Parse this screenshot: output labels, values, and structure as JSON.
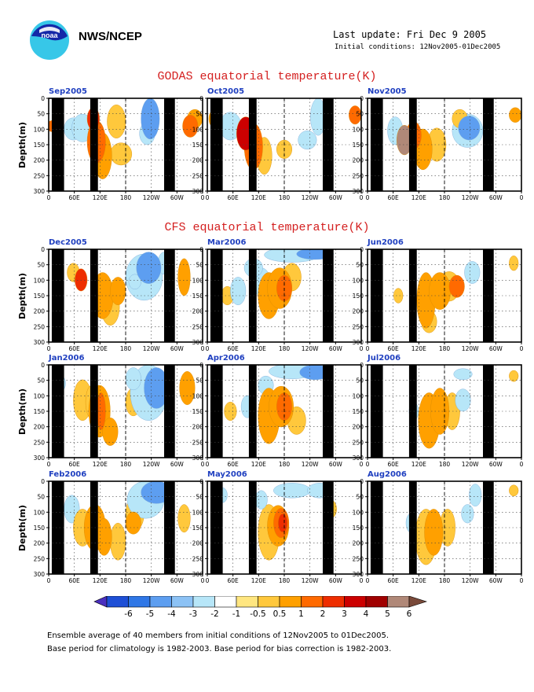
{
  "header": {
    "agency": "NWS/NCEP",
    "last_update": "Last update: Fri Dec  9 2005",
    "initial_conditions": "Initial conditions: 12Nov2005-01Dec2005",
    "logo_text": "noaa"
  },
  "godas_title": "GODAS equatorial temperature(K)",
  "cfs_title": "CFS equatorial temperature(K)",
  "footnotes": [
    "Ensemble average of 40 members from initial conditions of 12Nov2005 to 01Dec2005.",
    "Base period for climatology is 1982-2003. Base period for bias correction is 1982-2003."
  ],
  "colors": {
    "title_red": "#d42020",
    "panel_label_blue": "#2040c0",
    "scale": [
      "#4a2fbf",
      "#1e4fd6",
      "#2f77e6",
      "#5d9ef0",
      "#8cc2f5",
      "#b7e6f8",
      "#ffffff",
      "#ffe680",
      "#ffc83c",
      "#ffa000",
      "#ff6a00",
      "#ee2d00",
      "#cc0000",
      "#a00000",
      "#b08878",
      "#7a4a3a"
    ]
  },
  "chart_data": {
    "type": "heatmap",
    "ylabel": "Depth(m)",
    "y_ticks": [
      "0",
      "50",
      "100",
      "150",
      "200",
      "250",
      "300"
    ],
    "x_ticks": [
      "0",
      "60E",
      "120E",
      "180",
      "120W",
      "60W",
      "0"
    ],
    "ylim": [
      300,
      0
    ],
    "colorbar_levels": [
      "-6",
      "-5",
      "-4",
      "-3",
      "-2",
      "-1",
      "-0.5",
      "0.5",
      "1",
      "2",
      "3",
      "4",
      "5",
      "6"
    ],
    "panels": [
      {
        "id": "sep2005",
        "group": "godas",
        "label": "Sep2005",
        "blobs": [
          [
            0.16,
            0.33,
            0.06,
            0.12,
            -1
          ],
          [
            0.22,
            0.32,
            0.07,
            0.15,
            -1
          ],
          [
            0.29,
            0.22,
            0.04,
            0.12,
            4
          ],
          [
            0.31,
            0.47,
            0.06,
            0.23,
            3
          ],
          [
            0.35,
            0.62,
            0.06,
            0.25,
            2
          ],
          [
            0.44,
            0.25,
            0.06,
            0.18,
            1
          ],
          [
            0.47,
            0.6,
            0.07,
            0.12,
            1
          ],
          [
            0.64,
            0.38,
            0.05,
            0.12,
            -1
          ],
          [
            0.66,
            0.22,
            0.06,
            0.22,
            -2
          ],
          [
            0.92,
            0.3,
            0.05,
            0.12,
            3
          ],
          [
            0.95,
            0.22,
            0.05,
            0.1,
            2
          ],
          [
            0.02,
            0.3,
            0.03,
            0.06,
            3
          ]
        ]
      },
      {
        "id": "oct2005",
        "group": "godas",
        "label": "Oct2005",
        "blobs": [
          [
            0.05,
            0.22,
            0.04,
            0.1,
            2
          ],
          [
            0.15,
            0.3,
            0.07,
            0.15,
            -1
          ],
          [
            0.25,
            0.38,
            0.06,
            0.18,
            5
          ],
          [
            0.3,
            0.52,
            0.06,
            0.25,
            3
          ],
          [
            0.37,
            0.62,
            0.05,
            0.2,
            1
          ],
          [
            0.5,
            0.55,
            0.05,
            0.1,
            1
          ],
          [
            0.65,
            0.45,
            0.06,
            0.1,
            -1
          ],
          [
            0.72,
            0.2,
            0.05,
            0.2,
            -1
          ],
          [
            0.96,
            0.18,
            0.04,
            0.1,
            3
          ]
        ]
      },
      {
        "id": "nov2005",
        "group": "godas",
        "label": "Nov2005",
        "blobs": [
          [
            0.18,
            0.35,
            0.05,
            0.15,
            -1
          ],
          [
            0.24,
            0.45,
            0.05,
            0.16,
            6
          ],
          [
            0.3,
            0.4,
            0.05,
            0.15,
            3
          ],
          [
            0.36,
            0.55,
            0.06,
            0.22,
            2
          ],
          [
            0.45,
            0.5,
            0.06,
            0.18,
            1
          ],
          [
            0.65,
            0.35,
            0.1,
            0.18,
            -1
          ],
          [
            0.66,
            0.32,
            0.07,
            0.13,
            -2
          ],
          [
            0.6,
            0.22,
            0.05,
            0.1,
            1
          ],
          [
            0.96,
            0.18,
            0.04,
            0.08,
            2
          ]
        ]
      },
      {
        "id": "dec2005",
        "group": "cfs",
        "label": "Dec2005",
        "blobs": [
          [
            0.21,
            0.33,
            0.04,
            0.12,
            4
          ],
          [
            0.16,
            0.25,
            0.04,
            0.1,
            1
          ],
          [
            0.35,
            0.5,
            0.07,
            0.25,
            2
          ],
          [
            0.45,
            0.45,
            0.05,
            0.15,
            2
          ],
          [
            0.4,
            0.62,
            0.06,
            0.2,
            1
          ],
          [
            0.62,
            0.3,
            0.12,
            0.25,
            -1
          ],
          [
            0.65,
            0.2,
            0.08,
            0.17,
            -2
          ],
          [
            0.56,
            0.35,
            0.04,
            0.08,
            -1
          ],
          [
            0.88,
            0.3,
            0.04,
            0.2,
            2
          ],
          [
            0.75,
            0.15,
            0.04,
            0.12,
            -1
          ]
        ]
      },
      {
        "id": "mar2006",
        "group": "cfs",
        "label": "Mar2006",
        "blobs": [
          [
            0.13,
            0.5,
            0.04,
            0.1,
            1
          ],
          [
            0.2,
            0.45,
            0.05,
            0.15,
            -1
          ],
          [
            0.35,
            0.35,
            0.06,
            0.15,
            -1
          ],
          [
            0.4,
            0.5,
            0.07,
            0.25,
            2
          ],
          [
            0.47,
            0.42,
            0.08,
            0.22,
            2
          ],
          [
            0.5,
            0.42,
            0.05,
            0.14,
            3
          ],
          [
            0.55,
            0.3,
            0.06,
            0.15,
            1
          ],
          [
            0.55,
            0.06,
            0.18,
            0.08,
            -1
          ],
          [
            0.7,
            0.05,
            0.12,
            0.06,
            -2
          ],
          [
            0.3,
            0.2,
            0.06,
            0.1,
            -1
          ]
        ]
      },
      {
        "id": "jun2006",
        "group": "cfs",
        "label": "Jun2006",
        "blobs": [
          [
            0.38,
            0.55,
            0.06,
            0.3,
            2
          ],
          [
            0.47,
            0.45,
            0.07,
            0.2,
            2
          ],
          [
            0.53,
            0.4,
            0.07,
            0.16,
            1
          ],
          [
            0.58,
            0.4,
            0.05,
            0.12,
            3
          ],
          [
            0.4,
            0.78,
            0.05,
            0.12,
            1
          ],
          [
            0.68,
            0.25,
            0.05,
            0.12,
            -1
          ],
          [
            0.95,
            0.15,
            0.03,
            0.08,
            1
          ],
          [
            0.2,
            0.5,
            0.03,
            0.08,
            1
          ]
        ]
      },
      {
        "id": "jan2006",
        "group": "cfs",
        "label": "Jan2006",
        "blobs": [
          [
            0.08,
            0.2,
            0.03,
            0.08,
            -1
          ],
          [
            0.22,
            0.38,
            0.06,
            0.22,
            1
          ],
          [
            0.28,
            0.4,
            0.04,
            0.18,
            1
          ],
          [
            0.33,
            0.5,
            0.07,
            0.28,
            2
          ],
          [
            0.34,
            0.5,
            0.03,
            0.2,
            3
          ],
          [
            0.4,
            0.72,
            0.05,
            0.15,
            2
          ],
          [
            0.55,
            0.4,
            0.05,
            0.15,
            1
          ],
          [
            0.65,
            0.3,
            0.12,
            0.3,
            -1
          ],
          [
            0.7,
            0.25,
            0.08,
            0.22,
            -2
          ],
          [
            0.55,
            0.15,
            0.05,
            0.12,
            -1
          ],
          [
            0.9,
            0.25,
            0.05,
            0.18,
            2
          ]
        ]
      },
      {
        "id": "apr2006",
        "group": "cfs",
        "label": "Apr2006",
        "blobs": [
          [
            0.15,
            0.5,
            0.04,
            0.1,
            1
          ],
          [
            0.4,
            0.55,
            0.07,
            0.3,
            2
          ],
          [
            0.48,
            0.45,
            0.08,
            0.22,
            2
          ],
          [
            0.5,
            0.45,
            0.05,
            0.15,
            3
          ],
          [
            0.38,
            0.22,
            0.05,
            0.1,
            -1
          ],
          [
            0.55,
            0.07,
            0.15,
            0.08,
            -1
          ],
          [
            0.7,
            0.08,
            0.1,
            0.08,
            -2
          ],
          [
            0.58,
            0.6,
            0.06,
            0.15,
            1
          ],
          [
            0.26,
            0.45,
            0.04,
            0.12,
            -1
          ]
        ]
      },
      {
        "id": "jul2006",
        "group": "cfs",
        "label": "Jul2006",
        "blobs": [
          [
            0.4,
            0.6,
            0.07,
            0.3,
            2
          ],
          [
            0.47,
            0.5,
            0.06,
            0.25,
            2
          ],
          [
            0.55,
            0.5,
            0.05,
            0.2,
            1
          ],
          [
            0.62,
            0.38,
            0.05,
            0.12,
            -1
          ],
          [
            0.3,
            0.5,
            0.03,
            0.1,
            -1
          ],
          [
            0.95,
            0.12,
            0.03,
            0.06,
            1
          ],
          [
            0.62,
            0.1,
            0.06,
            0.06,
            -1
          ]
        ]
      },
      {
        "id": "feb2006",
        "group": "cfs",
        "label": "Feb2006",
        "blobs": [
          [
            0.15,
            0.3,
            0.05,
            0.15,
            -1
          ],
          [
            0.22,
            0.5,
            0.06,
            0.2,
            1
          ],
          [
            0.3,
            0.5,
            0.07,
            0.25,
            2
          ],
          [
            0.36,
            0.6,
            0.05,
            0.2,
            2
          ],
          [
            0.45,
            0.65,
            0.05,
            0.2,
            1
          ],
          [
            0.56,
            0.35,
            0.06,
            0.18,
            1
          ],
          [
            0.55,
            0.45,
            0.05,
            0.12,
            2
          ],
          [
            0.63,
            0.2,
            0.12,
            0.2,
            -1
          ],
          [
            0.7,
            0.12,
            0.1,
            0.12,
            -2
          ],
          [
            0.88,
            0.4,
            0.04,
            0.15,
            1
          ]
        ]
      },
      {
        "id": "may2006",
        "group": "cfs",
        "label": "May2006",
        "blobs": [
          [
            0.4,
            0.55,
            0.07,
            0.3,
            1
          ],
          [
            0.46,
            0.48,
            0.07,
            0.22,
            2
          ],
          [
            0.48,
            0.45,
            0.05,
            0.16,
            3
          ],
          [
            0.49,
            0.45,
            0.03,
            0.1,
            4
          ],
          [
            0.35,
            0.2,
            0.04,
            0.1,
            -1
          ],
          [
            0.55,
            0.1,
            0.12,
            0.08,
            -1
          ],
          [
            0.73,
            0.1,
            0.08,
            0.08,
            -1
          ],
          [
            0.8,
            0.3,
            0.04,
            0.1,
            1
          ],
          [
            0.1,
            0.15,
            0.03,
            0.08,
            -1
          ]
        ]
      },
      {
        "id": "aug2006",
        "group": "cfs",
        "label": "Aug2006",
        "blobs": [
          [
            0.38,
            0.6,
            0.07,
            0.3,
            1
          ],
          [
            0.43,
            0.55,
            0.06,
            0.25,
            2
          ],
          [
            0.52,
            0.5,
            0.05,
            0.2,
            1
          ],
          [
            0.65,
            0.35,
            0.04,
            0.1,
            -1
          ],
          [
            0.7,
            0.15,
            0.04,
            0.12,
            -1
          ],
          [
            0.28,
            0.45,
            0.03,
            0.1,
            -1
          ],
          [
            0.95,
            0.1,
            0.03,
            0.06,
            1
          ]
        ]
      }
    ]
  }
}
